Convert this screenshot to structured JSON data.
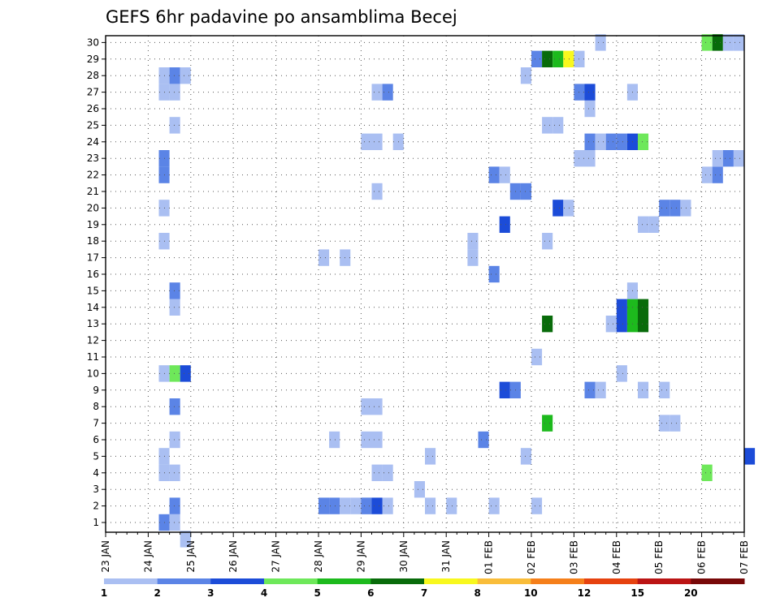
{
  "chart_data": {
    "type": "heatmap",
    "title": "GEFS 6hr padavine po ansamblima Becej",
    "y_labels": [
      "1",
      "2",
      "3",
      "4",
      "5",
      "6",
      "7",
      "8",
      "9",
      "10",
      "11",
      "12",
      "13",
      "14",
      "15",
      "16",
      "17",
      "18",
      "19",
      "20",
      "21",
      "22",
      "23",
      "24",
      "25",
      "26",
      "27",
      "28",
      "29",
      "30"
    ],
    "x_labels": [
      "23 JAN",
      "24 JAN",
      "25 JAN",
      "26 JAN",
      "27 JAN",
      "28 JAN",
      "29 JAN",
      "30 JAN",
      "31 JAN",
      "01 FEB",
      "02 FEB",
      "03 FEB",
      "04 FEB",
      "05 FEB",
      "06 FEB",
      "07 FEB"
    ],
    "grid": true,
    "legend": {
      "labels": [
        "1",
        "2",
        "3",
        "4",
        "5",
        "6",
        "7",
        "8",
        "10",
        "12",
        "15",
        "20"
      ],
      "colors": [
        "#aabff2",
        "#5b84e6",
        "#1c4cd8",
        "#6ee85a",
        "#1dba1d",
        "#086b0a",
        "#f8f81e",
        "#f9bd3a",
        "#f57f1a",
        "#e6420f",
        "#bb1414",
        "#780808"
      ]
    },
    "x_range_days": [
      0,
      15
    ],
    "cells": [
      {
        "m": 1,
        "d": 1.25,
        "c": 2
      },
      {
        "m": 1,
        "d": 1.5,
        "c": 1
      },
      {
        "m": 2,
        "d": 1.5,
        "c": 2
      },
      {
        "m": 2,
        "d": 5.25,
        "c": 2
      },
      {
        "m": 2,
        "d": 5.5,
        "c": 1
      },
      {
        "m": 2,
        "d": 5.0,
        "c": 2
      },
      {
        "m": 2,
        "d": 5.75,
        "c": 1
      },
      {
        "m": 2,
        "d": 6.0,
        "c": 1
      },
      {
        "m": 2,
        "d": 6.5,
        "c": 1
      },
      {
        "m": 2,
        "d": 6.0,
        "c": 2
      },
      {
        "m": 2,
        "d": 6.25,
        "c": 3
      },
      {
        "m": 2,
        "d": 7.5,
        "c": 1
      },
      {
        "m": 2,
        "d": 8.0,
        "c": 1
      },
      {
        "m": 2,
        "d": 9.0,
        "c": 1
      },
      {
        "m": 2,
        "d": 10.0,
        "c": 1
      },
      {
        "m": 3,
        "d": 7.25,
        "c": 1
      },
      {
        "m": 4,
        "d": 1.25,
        "c": 1
      },
      {
        "m": 4,
        "d": 1.5,
        "c": 1
      },
      {
        "m": 4,
        "d": 6.25,
        "c": 1
      },
      {
        "m": 4,
        "d": 6.5,
        "c": 1
      },
      {
        "m": 4,
        "d": 14.0,
        "c": 4
      },
      {
        "m": 5,
        "d": 1.25,
        "c": 1
      },
      {
        "m": 5,
        "d": 7.5,
        "c": 1
      },
      {
        "m": 5,
        "d": 9.75,
        "c": 1
      },
      {
        "m": 5,
        "d": 15.0,
        "c": 3
      },
      {
        "m": 6,
        "d": 1.5,
        "c": 1
      },
      {
        "m": 6,
        "d": 5.25,
        "c": 1
      },
      {
        "m": 6,
        "d": 6.0,
        "c": 1
      },
      {
        "m": 6,
        "d": 6.25,
        "c": 1
      },
      {
        "m": 6,
        "d": 8.75,
        "c": 2
      },
      {
        "m": 7,
        "d": 10.25,
        "c": 5
      },
      {
        "m": 7,
        "d": 13.0,
        "c": 1
      },
      {
        "m": 7,
        "d": 13.25,
        "c": 1
      },
      {
        "m": 8,
        "d": 1.5,
        "c": 2
      },
      {
        "m": 8,
        "d": 6.0,
        "c": 1
      },
      {
        "m": 8,
        "d": 6.25,
        "c": 1
      },
      {
        "m": 9,
        "d": 9.25,
        "c": 3
      },
      {
        "m": 9,
        "d": 9.5,
        "c": 2
      },
      {
        "m": 9,
        "d": 11.25,
        "c": 2
      },
      {
        "m": 9,
        "d": 11.5,
        "c": 1
      },
      {
        "m": 9,
        "d": 12.5,
        "c": 1
      },
      {
        "m": 9,
        "d": 13.0,
        "c": 1
      },
      {
        "m": 10,
        "d": 1.25,
        "c": 1
      },
      {
        "m": 10,
        "d": 1.5,
        "c": 4
      },
      {
        "m": 10,
        "d": 1.75,
        "c": 3
      },
      {
        "m": 10,
        "d": 12.0,
        "c": 1
      },
      {
        "m": 11,
        "d": 10.0,
        "c": 1
      },
      {
        "m": 13,
        "d": 10.25,
        "c": 6
      },
      {
        "m": 13,
        "d": 11.75,
        "c": 1
      },
      {
        "m": 13,
        "d": 12.0,
        "c": 3
      },
      {
        "m": 13,
        "d": 12.25,
        "c": 5
      },
      {
        "m": 13,
        "d": 12.5,
        "c": 6
      },
      {
        "m": 14,
        "d": 1.5,
        "c": 1
      },
      {
        "m": 14,
        "d": 12.0,
        "c": 3
      },
      {
        "m": 14,
        "d": 12.25,
        "c": 5
      },
      {
        "m": 14,
        "d": 12.5,
        "c": 6
      },
      {
        "m": 15,
        "d": 1.5,
        "c": 2
      },
      {
        "m": 15,
        "d": 12.25,
        "c": 1
      },
      {
        "m": 16,
        "d": 9.0,
        "c": 2
      },
      {
        "m": 17,
        "d": 5.0,
        "c": 1
      },
      {
        "m": 17,
        "d": 5.5,
        "c": 1
      },
      {
        "m": 17,
        "d": 8.5,
        "c": 1
      },
      {
        "m": 18,
        "d": 1.25,
        "c": 1
      },
      {
        "m": 18,
        "d": 8.5,
        "c": 1
      },
      {
        "m": 18,
        "d": 10.25,
        "c": 1
      },
      {
        "m": 19,
        "d": 9.25,
        "c": 3
      },
      {
        "m": 19,
        "d": 12.5,
        "c": 1
      },
      {
        "m": 19,
        "d": 12.75,
        "c": 1
      },
      {
        "m": 20,
        "d": 1.25,
        "c": 1
      },
      {
        "m": 20,
        "d": 10.5,
        "c": 3
      },
      {
        "m": 20,
        "d": 10.75,
        "c": 1
      },
      {
        "m": 20,
        "d": 13.0,
        "c": 2
      },
      {
        "m": 20,
        "d": 13.25,
        "c": 2
      },
      {
        "m": 20,
        "d": 13.5,
        "c": 1
      },
      {
        "m": 21,
        "d": 6.25,
        "c": 1
      },
      {
        "m": 21,
        "d": 9.5,
        "c": 2
      },
      {
        "m": 21,
        "d": 9.75,
        "c": 2
      },
      {
        "m": 22,
        "d": 1.25,
        "c": 2
      },
      {
        "m": 22,
        "d": 9.0,
        "c": 2
      },
      {
        "m": 22,
        "d": 9.25,
        "c": 1
      },
      {
        "m": 22,
        "d": 14.0,
        "c": 1
      },
      {
        "m": 22,
        "d": 14.25,
        "c": 2
      },
      {
        "m": 23,
        "d": 1.25,
        "c": 2
      },
      {
        "m": 23,
        "d": 11.0,
        "c": 1
      },
      {
        "m": 23,
        "d": 11.25,
        "c": 1
      },
      {
        "m": 23,
        "d": 14.25,
        "c": 1
      },
      {
        "m": 23,
        "d": 14.5,
        "c": 2
      },
      {
        "m": 23,
        "d": 14.75,
        "c": 1
      },
      {
        "m": 24,
        "d": 6.0,
        "c": 1
      },
      {
        "m": 24,
        "d": 6.25,
        "c": 1
      },
      {
        "m": 24,
        "d": 6.75,
        "c": 1
      },
      {
        "m": 24,
        "d": 11.25,
        "c": 2
      },
      {
        "m": 24,
        "d": 11.5,
        "c": 1
      },
      {
        "m": 24,
        "d": 11.75,
        "c": 2
      },
      {
        "m": 24,
        "d": 12.0,
        "c": 2
      },
      {
        "m": 24,
        "d": 12.25,
        "c": 3
      },
      {
        "m": 24,
        "d": 12.5,
        "c": 4
      },
      {
        "m": 25,
        "d": 1.5,
        "c": 1
      },
      {
        "m": 25,
        "d": 10.25,
        "c": 1
      },
      {
        "m": 25,
        "d": 10.5,
        "c": 1
      },
      {
        "m": 26,
        "d": 11.25,
        "c": 1
      },
      {
        "m": 27,
        "d": 1.25,
        "c": 1
      },
      {
        "m": 27,
        "d": 1.5,
        "c": 1
      },
      {
        "m": 27,
        "d": 6.25,
        "c": 1
      },
      {
        "m": 27,
        "d": 6.5,
        "c": 2
      },
      {
        "m": 27,
        "d": 11.0,
        "c": 2
      },
      {
        "m": 27,
        "d": 11.25,
        "c": 3
      },
      {
        "m": 27,
        "d": 12.25,
        "c": 1
      },
      {
        "m": 28,
        "d": 1.25,
        "c": 1
      },
      {
        "m": 28,
        "d": 1.5,
        "c": 2
      },
      {
        "m": 28,
        "d": 1.75,
        "c": 1
      },
      {
        "m": 28,
        "d": 9.75,
        "c": 1
      },
      {
        "m": 29,
        "d": 10.0,
        "c": 2
      },
      {
        "m": 29,
        "d": 10.25,
        "c": 6
      },
      {
        "m": 29,
        "d": 10.5,
        "c": 5
      },
      {
        "m": 29,
        "d": 10.75,
        "c": 7
      },
      {
        "m": 29,
        "d": 11.0,
        "c": 1
      },
      {
        "m": 30,
        "d": 11.5,
        "c": 1
      },
      {
        "m": 30,
        "d": 14.0,
        "c": 4
      },
      {
        "m": 30,
        "d": 14.25,
        "c": 6
      },
      {
        "m": 30,
        "d": 14.5,
        "c": 1
      },
      {
        "m": 30,
        "d": 14.75,
        "c": 1
      },
      {
        "m": 0,
        "d": 1.75,
        "c": 1
      }
    ]
  }
}
